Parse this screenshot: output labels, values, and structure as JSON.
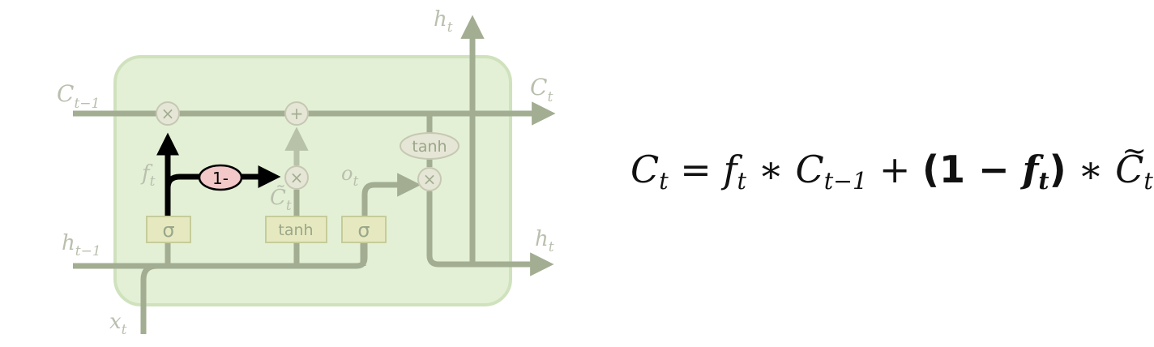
{
  "labels": {
    "c_prev_main": "C",
    "c_prev_sub": "t−1",
    "c_out_main": "C",
    "c_out_sub": "t",
    "h_top_main": "h",
    "h_top_sub": "t",
    "h_prev_main": "h",
    "h_prev_sub": "t−1",
    "h_out_main": "h",
    "h_out_sub": "t",
    "x_main": "x",
    "x_sub": "t",
    "f_main": "f",
    "f_sub": "t",
    "o_main": "o",
    "o_sub": "t",
    "ctilde_main": "C̃",
    "ctilde_sub": "t"
  },
  "ops": {
    "multiply": "×",
    "add": "+",
    "one_minus": "1-"
  },
  "boxes": {
    "forget_sigma": "σ",
    "candidate_tanh": "tanh",
    "output_sigma": "σ",
    "cell_tanh": "tanh"
  },
  "equation": {
    "lhs_main": "C",
    "lhs_sub": "t",
    "eq": "=",
    "f_main": "f",
    "f_sub": "t",
    "times1": "∗",
    "c_main": "C",
    "c_sub": "t−1",
    "plus": "+",
    "open": "(1 − ",
    "bf_main": "f",
    "bf_sub": "t",
    "close": ")",
    "times2": "∗",
    "ct_main": "C",
    "ct_sub": "t"
  },
  "colors": {
    "cell_fill": "#e3f0d5",
    "cell_stroke": "#cfe2bd",
    "line": "#a2ad92",
    "highlight": "#000000",
    "one_minus_fill": "#f3c8c8"
  }
}
